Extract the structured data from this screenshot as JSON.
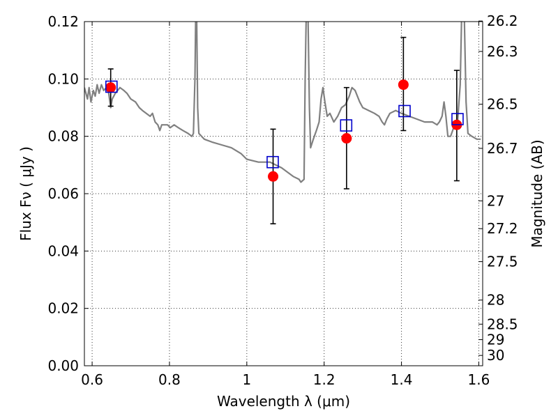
{
  "chart_data": {
    "type": "scatter",
    "xlabel": "Wavelength  λ (μm)",
    "ylabel": "Flux  Fν  ( μJy )",
    "ylabel_right": "Magnitude (AB)",
    "xlim": [
      0.58,
      1.61
    ],
    "ylim": [
      0.0,
      0.12
    ],
    "grid": true,
    "x_ticks": [
      {
        "v": 0.6,
        "label": "0.6"
      },
      {
        "v": 0.8,
        "label": "0.8"
      },
      {
        "v": 1.0,
        "label": "1"
      },
      {
        "v": 1.2,
        "label": "1.2"
      },
      {
        "v": 1.4,
        "label": "1.4"
      },
      {
        "v": 1.6,
        "label": "1.6"
      }
    ],
    "y_ticks": [
      {
        "v": 0.0,
        "label": "0.00"
      },
      {
        "v": 0.02,
        "label": "0.02"
      },
      {
        "v": 0.04,
        "label": "0.04"
      },
      {
        "v": 0.06,
        "label": "0.06"
      },
      {
        "v": 0.08,
        "label": "0.08"
      },
      {
        "v": 0.1,
        "label": "0.10"
      },
      {
        "v": 0.12,
        "label": "0.12"
      }
    ],
    "mag_ticks": [
      {
        "flux": 0.1202,
        "label": "26.2"
      },
      {
        "flux": 0.1096,
        "label": "26.3"
      },
      {
        "flux": 0.0912,
        "label": "26.5"
      },
      {
        "flux": 0.0758,
        "label": "26.7"
      },
      {
        "flux": 0.0575,
        "label": "27"
      },
      {
        "flux": 0.0478,
        "label": "27.2"
      },
      {
        "flux": 0.0363,
        "label": "27.5"
      },
      {
        "flux": 0.0229,
        "label": "28"
      },
      {
        "flux": 0.0145,
        "label": "28.5"
      },
      {
        "flux": 0.0091,
        "label": "29"
      },
      {
        "flux": 0.0036,
        "label": "30"
      }
    ],
    "series": [
      {
        "kind": "line",
        "color": "#808080",
        "points": [
          [
            0.58,
            0.097
          ],
          [
            0.588,
            0.093
          ],
          [
            0.592,
            0.097
          ],
          [
            0.597,
            0.092
          ],
          [
            0.603,
            0.096
          ],
          [
            0.608,
            0.094
          ],
          [
            0.613,
            0.098
          ],
          [
            0.618,
            0.095
          ],
          [
            0.624,
            0.098
          ],
          [
            0.63,
            0.096
          ],
          [
            0.637,
            0.097
          ],
          [
            0.643,
            0.095
          ],
          [
            0.648,
            0.09
          ],
          [
            0.652,
            0.093
          ],
          [
            0.66,
            0.095
          ],
          [
            0.672,
            0.097
          ],
          [
            0.682,
            0.096
          ],
          [
            0.69,
            0.095
          ],
          [
            0.7,
            0.093
          ],
          [
            0.712,
            0.092
          ],
          [
            0.722,
            0.09
          ],
          [
            0.73,
            0.089
          ],
          [
            0.74,
            0.088
          ],
          [
            0.75,
            0.087
          ],
          [
            0.756,
            0.088
          ],
          [
            0.763,
            0.085
          ],
          [
            0.77,
            0.084
          ],
          [
            0.775,
            0.082
          ],
          [
            0.78,
            0.084
          ],
          [
            0.795,
            0.084
          ],
          [
            0.802,
            0.083
          ],
          [
            0.812,
            0.084
          ],
          [
            0.823,
            0.083
          ],
          [
            0.835,
            0.082
          ],
          [
            0.848,
            0.081
          ],
          [
            0.858,
            0.08
          ],
          [
            0.862,
            0.081
          ],
          [
            0.866,
            0.1
          ],
          [
            0.868,
            0.125
          ],
          [
            0.87,
            0.125
          ],
          [
            0.873,
            0.09
          ],
          [
            0.876,
            0.081
          ],
          [
            0.89,
            0.079
          ],
          [
            0.91,
            0.078
          ],
          [
            0.935,
            0.077
          ],
          [
            0.96,
            0.076
          ],
          [
            0.985,
            0.074
          ],
          [
            1.0,
            0.072
          ],
          [
            1.03,
            0.071
          ],
          [
            1.06,
            0.071
          ],
          [
            1.09,
            0.069
          ],
          [
            1.12,
            0.066
          ],
          [
            1.135,
            0.065
          ],
          [
            1.14,
            0.064
          ],
          [
            1.148,
            0.065
          ],
          [
            1.151,
            0.1
          ],
          [
            1.154,
            0.125
          ],
          [
            1.158,
            0.125
          ],
          [
            1.162,
            0.09
          ],
          [
            1.165,
            0.076
          ],
          [
            1.172,
            0.079
          ],
          [
            1.18,
            0.082
          ],
          [
            1.187,
            0.085
          ],
          [
            1.192,
            0.093
          ],
          [
            1.197,
            0.097
          ],
          [
            1.202,
            0.092
          ],
          [
            1.208,
            0.087
          ],
          [
            1.215,
            0.088
          ],
          [
            1.225,
            0.085
          ],
          [
            1.235,
            0.087
          ],
          [
            1.245,
            0.09
          ],
          [
            1.255,
            0.091
          ],
          [
            1.265,
            0.094
          ],
          [
            1.272,
            0.097
          ],
          [
            1.28,
            0.096
          ],
          [
            1.292,
            0.092
          ],
          [
            1.3,
            0.09
          ],
          [
            1.315,
            0.089
          ],
          [
            1.33,
            0.088
          ],
          [
            1.342,
            0.087
          ],
          [
            1.35,
            0.085
          ],
          [
            1.356,
            0.084
          ],
          [
            1.362,
            0.086
          ],
          [
            1.37,
            0.088
          ],
          [
            1.385,
            0.089
          ],
          [
            1.4,
            0.088
          ],
          [
            1.42,
            0.087
          ],
          [
            1.44,
            0.086
          ],
          [
            1.46,
            0.085
          ],
          [
            1.48,
            0.085
          ],
          [
            1.492,
            0.084
          ],
          [
            1.498,
            0.085
          ],
          [
            1.505,
            0.087
          ],
          [
            1.51,
            0.092
          ],
          [
            1.515,
            0.087
          ],
          [
            1.52,
            0.08
          ],
          [
            1.527,
            0.08
          ],
          [
            1.535,
            0.083
          ],
          [
            1.545,
            0.085
          ],
          [
            1.552,
            0.098
          ],
          [
            1.556,
            0.125
          ],
          [
            1.562,
            0.125
          ],
          [
            1.567,
            0.092
          ],
          [
            1.572,
            0.081
          ],
          [
            1.582,
            0.08
          ],
          [
            1.595,
            0.079
          ],
          [
            1.605,
            0.079
          ]
        ]
      },
      {
        "kind": "points",
        "marker": "circle",
        "color": "#ff0000",
        "points": [
          {
            "x": 0.648,
            "y": 0.097,
            "ylow": 0.0905,
            "yhigh": 0.1035
          },
          {
            "x": 1.068,
            "y": 0.066,
            "ylow": 0.0495,
            "yhigh": 0.0825
          },
          {
            "x": 1.258,
            "y": 0.0793,
            "ylow": 0.0617,
            "yhigh": 0.097
          },
          {
            "x": 1.405,
            "y": 0.098,
            "ylow": 0.082,
            "yhigh": 0.1145
          },
          {
            "x": 1.543,
            "y": 0.084,
            "ylow": 0.0645,
            "yhigh": 0.103
          }
        ]
      },
      {
        "kind": "points",
        "marker": "square-open",
        "color": "#0000cc",
        "points": [
          {
            "x": 0.65,
            "y": 0.0973
          },
          {
            "x": 1.067,
            "y": 0.071
          },
          {
            "x": 1.257,
            "y": 0.0838
          },
          {
            "x": 1.408,
            "y": 0.0888
          },
          {
            "x": 1.545,
            "y": 0.086
          }
        ]
      }
    ]
  }
}
